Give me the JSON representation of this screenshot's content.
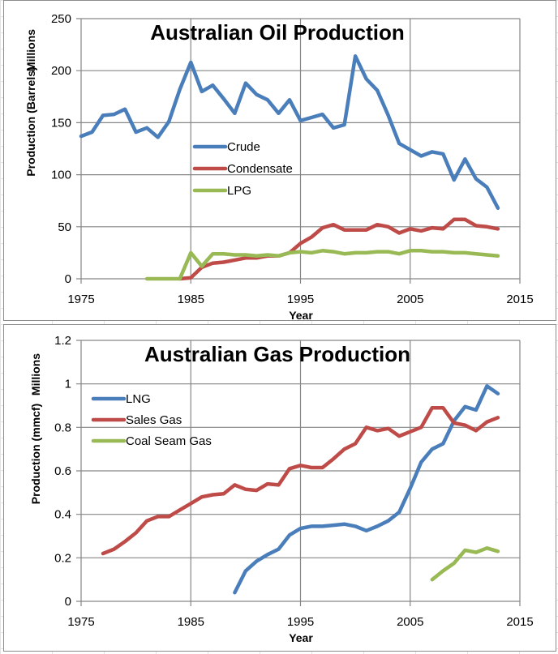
{
  "chart_data": [
    {
      "type": "line",
      "title": "Australian Oil Production",
      "xlabel": "Year",
      "ylabel": "Production (Barrels)",
      "y_units_label": "Millions",
      "xlim": [
        1975,
        2015
      ],
      "ylim": [
        0,
        250
      ],
      "x_ticks": [
        1975,
        1985,
        1995,
        2005,
        2015
      ],
      "y_ticks": [
        0,
        50,
        100,
        150,
        200,
        250
      ],
      "grid": true,
      "legend_position": "center-left",
      "series": [
        {
          "name": "Crude",
          "color": "#4a7ebb",
          "x": [
            1975,
            1976,
            1977,
            1978,
            1979,
            1980,
            1981,
            1982,
            1983,
            1984,
            1985,
            1986,
            1987,
            1988,
            1989,
            1990,
            1991,
            1992,
            1993,
            1994,
            1995,
            1996,
            1997,
            1998,
            1999,
            2000,
            2001,
            2002,
            2003,
            2004,
            2005,
            2006,
            2007,
            2008,
            2009,
            2010,
            2011,
            2012,
            2013
          ],
          "values": [
            137,
            141,
            157,
            158,
            163,
            141,
            145,
            136,
            151,
            182,
            208,
            180,
            186,
            173,
            159,
            188,
            177,
            172,
            159,
            172,
            152,
            155,
            158,
            145,
            148,
            214,
            192,
            181,
            157,
            130,
            124,
            118,
            122,
            120,
            95,
            115,
            96,
            88,
            68
          ]
        },
        {
          "name": "Condensate",
          "color": "#be4b48",
          "x": [
            1984,
            1985,
            1986,
            1987,
            1988,
            1989,
            1990,
            1991,
            1992,
            1993,
            1994,
            1995,
            1996,
            1997,
            1998,
            1999,
            2000,
            2001,
            2002,
            2003,
            2004,
            2005,
            2006,
            2007,
            2008,
            2009,
            2010,
            2011,
            2012,
            2013
          ],
          "values": [
            0,
            1,
            11,
            15,
            16,
            18,
            20,
            20,
            22,
            22,
            25,
            34,
            40,
            49,
            52,
            47,
            47,
            47,
            52,
            50,
            44,
            48,
            46,
            49,
            48,
            57,
            57,
            51,
            50,
            48
          ]
        },
        {
          "name": "LPG",
          "color": "#98b954",
          "x": [
            1981,
            1982,
            1983,
            1984,
            1985,
            1986,
            1987,
            1988,
            1989,
            1990,
            1991,
            1992,
            1993,
            1994,
            1995,
            1996,
            1997,
            1998,
            1999,
            2000,
            2001,
            2002,
            2003,
            2004,
            2005,
            2006,
            2007,
            2008,
            2009,
            2010,
            2011,
            2012,
            2013
          ],
          "values": [
            0,
            0,
            0,
            0,
            25,
            12,
            24,
            24,
            23,
            23,
            22,
            23,
            22,
            25,
            26,
            25,
            27,
            26,
            24,
            25,
            25,
            26,
            26,
            24,
            27,
            27,
            26,
            26,
            25,
            25,
            24,
            23,
            22
          ]
        }
      ]
    },
    {
      "type": "line",
      "title": "Australian Gas Production",
      "xlabel": "Year",
      "ylabel": "Production (mmcf)",
      "y_units_label": "Millions",
      "xlim": [
        1975,
        2015
      ],
      "ylim": [
        0,
        1.2
      ],
      "x_ticks": [
        1975,
        1985,
        1995,
        2005,
        2015
      ],
      "y_ticks": [
        0,
        0.2,
        0.4,
        0.6,
        0.8,
        1,
        1.2
      ],
      "grid": true,
      "legend_position": "top-left",
      "series": [
        {
          "name": "LNG",
          "color": "#4a7ebb",
          "x": [
            1989,
            1990,
            1991,
            1992,
            1993,
            1994,
            1995,
            1996,
            1997,
            1998,
            1999,
            2000,
            2001,
            2002,
            2003,
            2004,
            2005,
            2006,
            2007,
            2008,
            2009,
            2010,
            2011,
            2012,
            2013
          ],
          "values": [
            0.04,
            0.14,
            0.185,
            0.215,
            0.24,
            0.305,
            0.335,
            0.345,
            0.345,
            0.35,
            0.355,
            0.345,
            0.325,
            0.345,
            0.37,
            0.41,
            0.52,
            0.64,
            0.7,
            0.725,
            0.83,
            0.895,
            0.88,
            0.99,
            0.955
          ]
        },
        {
          "name": "Sales Gas",
          "color": "#be4b48",
          "x": [
            1977,
            1978,
            1979,
            1980,
            1981,
            1982,
            1983,
            1984,
            1985,
            1986,
            1987,
            1988,
            1989,
            1990,
            1991,
            1992,
            1993,
            1994,
            1995,
            1996,
            1997,
            1998,
            1999,
            2000,
            2001,
            2002,
            2003,
            2004,
            2005,
            2006,
            2007,
            2008,
            2009,
            2010,
            2011,
            2012,
            2013
          ],
          "values": [
            0.22,
            0.24,
            0.275,
            0.315,
            0.37,
            0.39,
            0.39,
            0.42,
            0.45,
            0.48,
            0.49,
            0.495,
            0.535,
            0.515,
            0.51,
            0.54,
            0.535,
            0.61,
            0.625,
            0.615,
            0.615,
            0.655,
            0.7,
            0.725,
            0.8,
            0.785,
            0.795,
            0.76,
            0.78,
            0.8,
            0.89,
            0.89,
            0.82,
            0.81,
            0.785,
            0.825,
            0.845
          ]
        },
        {
          "name": "Coal Seam Gas",
          "color": "#98b954",
          "x": [
            2007,
            2008,
            2009,
            2010,
            2011,
            2012,
            2013
          ],
          "values": [
            0.1,
            0.14,
            0.175,
            0.235,
            0.225,
            0.245,
            0.23
          ]
        }
      ]
    }
  ]
}
